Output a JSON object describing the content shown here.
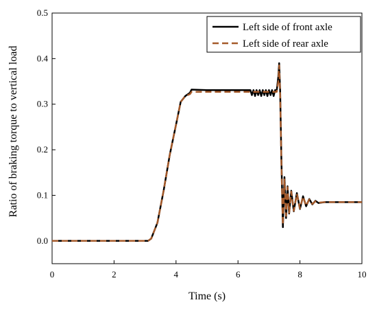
{
  "chart_data": {
    "type": "line",
    "title": "",
    "xlabel": "Time (s)",
    "ylabel": "Ratio of braking torque to vertical load",
    "xlim": [
      0,
      10
    ],
    "ylim": [
      -0.05,
      0.5
    ],
    "xticks": [
      0,
      2,
      4,
      6,
      8,
      10
    ],
    "yticks": [
      0.0,
      0.1,
      0.2,
      0.3,
      0.4,
      0.5
    ],
    "grid": false,
    "legend_position": "top-right",
    "series": [
      {
        "name": "Left side of front axle",
        "color": "#000000",
        "style": "solid",
        "points": [
          [
            0,
            0.0
          ],
          [
            3.1,
            0.0
          ],
          [
            3.2,
            0.005
          ],
          [
            3.4,
            0.04
          ],
          [
            3.6,
            0.11
          ],
          [
            3.8,
            0.19
          ],
          [
            4.0,
            0.255
          ],
          [
            4.15,
            0.305
          ],
          [
            4.3,
            0.318
          ],
          [
            4.45,
            0.325
          ],
          [
            4.5,
            0.332
          ],
          [
            5.0,
            0.331
          ],
          [
            5.5,
            0.331
          ],
          [
            6.0,
            0.331
          ],
          [
            6.4,
            0.331
          ],
          [
            6.45,
            0.32
          ],
          [
            6.5,
            0.331
          ],
          [
            6.55,
            0.318
          ],
          [
            6.6,
            0.331
          ],
          [
            6.65,
            0.32
          ],
          [
            6.7,
            0.331
          ],
          [
            6.75,
            0.318
          ],
          [
            6.8,
            0.331
          ],
          [
            6.85,
            0.32
          ],
          [
            6.9,
            0.331
          ],
          [
            6.95,
            0.318
          ],
          [
            7.0,
            0.331
          ],
          [
            7.05,
            0.32
          ],
          [
            7.1,
            0.331
          ],
          [
            7.15,
            0.318
          ],
          [
            7.2,
            0.331
          ],
          [
            7.25,
            0.33
          ],
          [
            7.3,
            0.36
          ],
          [
            7.33,
            0.39
          ],
          [
            7.36,
            0.33
          ],
          [
            7.4,
            0.18
          ],
          [
            7.45,
            0.03
          ],
          [
            7.5,
            0.14
          ],
          [
            7.55,
            0.05
          ],
          [
            7.6,
            0.12
          ],
          [
            7.65,
            0.06
          ],
          [
            7.72,
            0.11
          ],
          [
            7.8,
            0.065
          ],
          [
            7.9,
            0.105
          ],
          [
            8.0,
            0.07
          ],
          [
            8.1,
            0.098
          ],
          [
            8.2,
            0.076
          ],
          [
            8.3,
            0.092
          ],
          [
            8.4,
            0.08
          ],
          [
            8.5,
            0.088
          ],
          [
            8.6,
            0.083
          ],
          [
            8.8,
            0.085
          ],
          [
            10.0,
            0.085
          ]
        ]
      },
      {
        "name": "Left side of rear axle",
        "color": "#a55a2a",
        "style": "dashed",
        "points": [
          [
            0,
            0.0
          ],
          [
            3.1,
            0.0
          ],
          [
            3.2,
            0.005
          ],
          [
            3.4,
            0.04
          ],
          [
            3.6,
            0.11
          ],
          [
            3.8,
            0.19
          ],
          [
            4.0,
            0.255
          ],
          [
            4.15,
            0.305
          ],
          [
            4.3,
            0.318
          ],
          [
            4.45,
            0.322
          ],
          [
            4.5,
            0.327
          ],
          [
            5.0,
            0.327
          ],
          [
            6.0,
            0.327
          ],
          [
            7.0,
            0.327
          ],
          [
            7.25,
            0.327
          ],
          [
            7.3,
            0.35
          ],
          [
            7.33,
            0.385
          ],
          [
            7.36,
            0.32
          ],
          [
            7.4,
            0.17
          ],
          [
            7.45,
            0.035
          ],
          [
            7.5,
            0.135
          ],
          [
            7.55,
            0.055
          ],
          [
            7.6,
            0.118
          ],
          [
            7.65,
            0.062
          ],
          [
            7.72,
            0.108
          ],
          [
            7.8,
            0.066
          ],
          [
            7.9,
            0.103
          ],
          [
            8.0,
            0.071
          ],
          [
            8.1,
            0.097
          ],
          [
            8.2,
            0.077
          ],
          [
            8.3,
            0.091
          ],
          [
            8.4,
            0.081
          ],
          [
            8.5,
            0.087
          ],
          [
            8.6,
            0.084
          ],
          [
            8.8,
            0.085
          ],
          [
            10.0,
            0.085
          ]
        ]
      }
    ]
  }
}
